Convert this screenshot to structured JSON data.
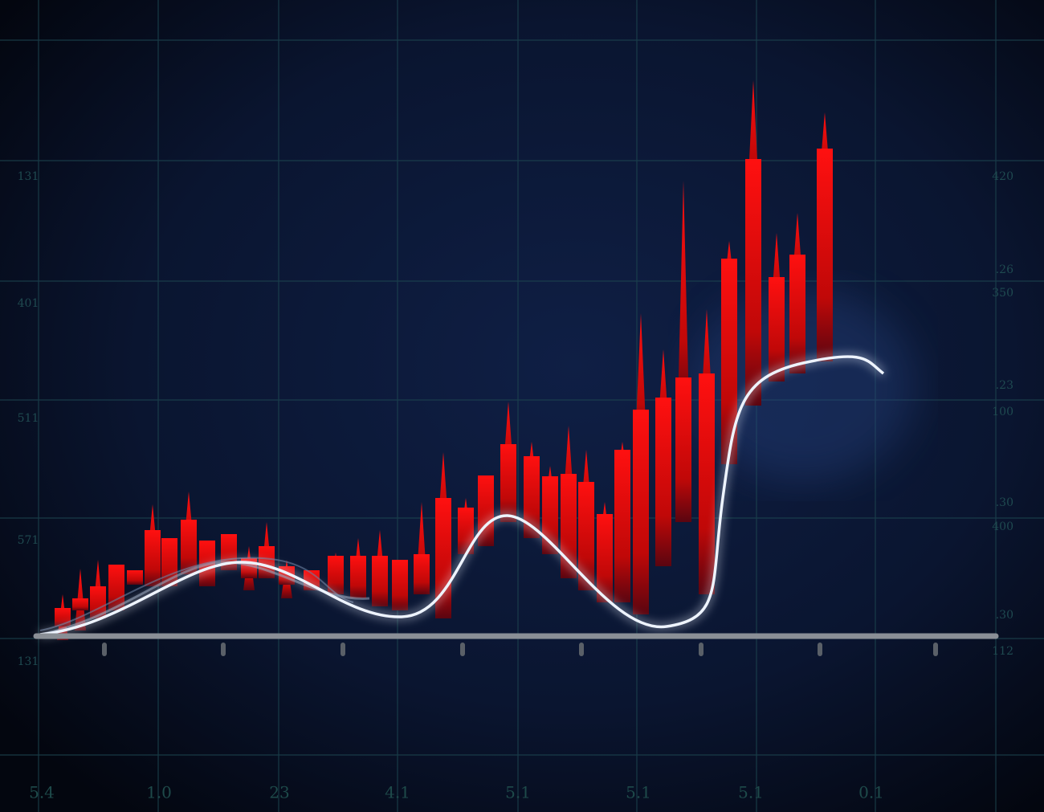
{
  "left_labels": [
    "131",
    "401",
    "511",
    "571",
    "131"
  ],
  "right_labels": [
    "420",
    ".26",
    "350",
    ".23",
    "100",
    ".30",
    "400",
    ".30",
    "112"
  ],
  "bottom_labels": [
    "5.4",
    "1.0",
    "23",
    "4.1",
    "5.1",
    "5.1",
    "5.1",
    "0.1"
  ]
}
